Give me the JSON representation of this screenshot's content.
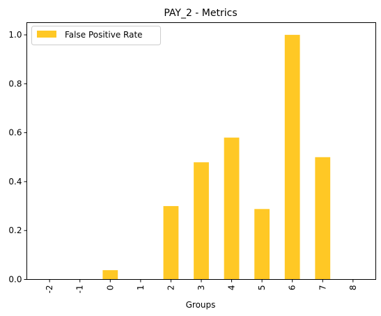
{
  "chart_data": {
    "type": "bar",
    "title": "PAY_2 - Metrics",
    "xlabel": "Groups",
    "ylabel": "",
    "categories": [
      "-2",
      "-1",
      "0",
      "1",
      "2",
      "3",
      "4",
      "5",
      "6",
      "7",
      "8"
    ],
    "series": [
      {
        "name": "False Positive Rate",
        "color": "#ffc825",
        "values": [
          0,
          0,
          0.038,
          0,
          0.3,
          0.479,
          0.58,
          0.288,
          1.0,
          0.5,
          0
        ]
      }
    ],
    "ylim": [
      0,
      1.05
    ],
    "yticks": [
      "0.0",
      "0.2",
      "0.4",
      "0.6",
      "0.8",
      "1.0"
    ],
    "grid": false,
    "legend_position": "upper-left"
  }
}
